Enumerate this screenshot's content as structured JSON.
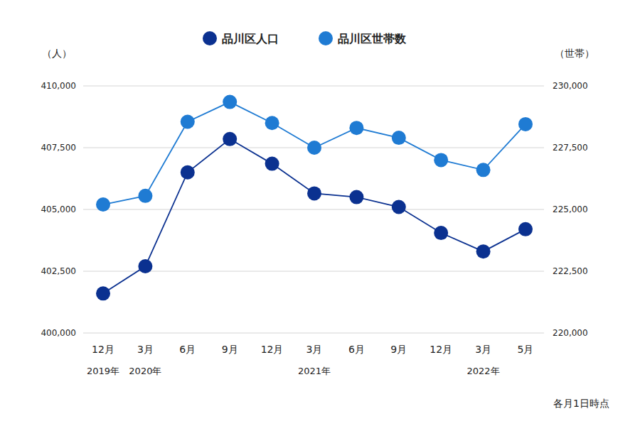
{
  "chart_data": {
    "type": "line",
    "categories": [
      "12月",
      "3月",
      "6月",
      "9月",
      "12月",
      "3月",
      "6月",
      "9月",
      "12月",
      "3月",
      "5月"
    ],
    "category_years": [
      "2019年",
      "2020年",
      null,
      null,
      null,
      "2021年",
      null,
      null,
      null,
      "2022年",
      null
    ],
    "y_label": "（人）",
    "y2_label": "（世帯）",
    "annotations": [
      "各月1日時点"
    ],
    "ylim": [
      400000,
      410000
    ],
    "yticks": [
      {
        "value": 400000,
        "label": "400,000"
      },
      {
        "value": 402500,
        "label": "402,500"
      },
      {
        "value": 405000,
        "label": "405,000"
      },
      {
        "value": 407500,
        "label": "407,500"
      },
      {
        "value": 410000,
        "label": "410,000"
      }
    ],
    "y2lim": [
      220000,
      230000
    ],
    "y2ticks": [
      {
        "value": 220000,
        "label": "220,000"
      },
      {
        "value": 222500,
        "label": "222,500"
      },
      {
        "value": 225000,
        "label": "225,000"
      },
      {
        "value": 227500,
        "label": "227,500"
      },
      {
        "value": 230000,
        "label": "230,000"
      }
    ],
    "grid": true,
    "legend": "top",
    "series": [
      {
        "name": "品川区人口",
        "color": "#0b3190",
        "marker": "circle",
        "line_style": "solid",
        "values": [
          401600,
          402700,
          406500,
          407850,
          406850,
          405650,
          405500,
          405100,
          404050,
          403300,
          404200
        ]
      },
      {
        "name": "品川区世帯数",
        "color": "#1f7bd3",
        "marker": "circle",
        "line_style": "solid",
        "axis": "y2",
        "values": [
          225200,
          225550,
          228550,
          229350,
          228500,
          227500,
          228300,
          227900,
          227000,
          226600,
          228450
        ]
      }
    ]
  }
}
